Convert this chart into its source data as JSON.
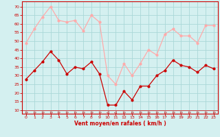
{
  "x": [
    0,
    1,
    2,
    3,
    4,
    5,
    6,
    7,
    8,
    9,
    10,
    11,
    12,
    13,
    14,
    15,
    16,
    17,
    18,
    19,
    20,
    21,
    22,
    23
  ],
  "rafales": [
    49,
    57,
    64,
    70,
    62,
    61,
    62,
    56,
    65,
    61,
    30,
    25,
    37,
    30,
    37,
    45,
    42,
    54,
    57,
    53,
    53,
    49,
    59,
    59
  ],
  "moyen": [
    28,
    33,
    38,
    44,
    39,
    31,
    35,
    34,
    38,
    31,
    13,
    13,
    21,
    16,
    24,
    24,
    30,
    33,
    39,
    36,
    35,
    32,
    36,
    34
  ],
  "color_rafales": "#ffaaaa",
  "color_moyen": "#cc0000",
  "bg_color": "#d4f0f0",
  "grid_color": "#aad8d8",
  "xlabel": "Vent moyen/en rafales ( km/h )",
  "ylabel_ticks": [
    10,
    15,
    20,
    25,
    30,
    35,
    40,
    45,
    50,
    55,
    60,
    65,
    70
  ],
  "ylim": [
    8,
    73
  ],
  "xlim": [
    -0.5,
    23.5
  ],
  "axis_color": "#cc0000",
  "tick_color": "#cc0000"
}
